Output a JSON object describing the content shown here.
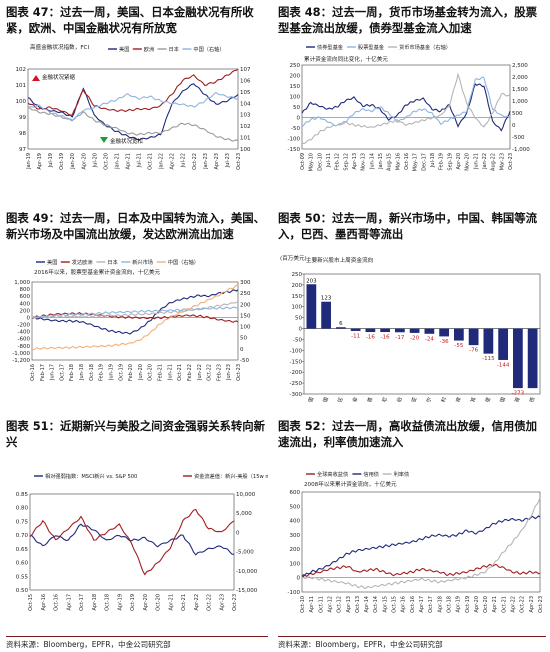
{
  "source_note": "资料来源：Bloomberg，EPFR，中金公司研究部",
  "chart_data": [
    {
      "id": "c47",
      "type": "line",
      "title": "图表 47：过去一周，美国、日本金融状况有所收紧，欧洲、中国金融状况有所放宽",
      "subtitle": "高盛金融状况指数，FCI",
      "left_ylim": [
        97,
        102
      ],
      "left_ticks": [
        "97",
        "98",
        "99",
        "100",
        "101",
        "102"
      ],
      "right_ylim": [
        100,
        107
      ],
      "right_ticks": [
        "100",
        "101",
        "102",
        "103",
        "104",
        "105",
        "106",
        "107"
      ],
      "x_ticks": [
        "Jan-19",
        "Apr-19",
        "Jul-19",
        "Oct-19",
        "Jan-20",
        "Apr-20",
        "Jul-20",
        "Oct-20",
        "Jan-21",
        "Apr-21",
        "Jul-21",
        "Oct-21",
        "Jan-22",
        "Apr-22",
        "Jul-22",
        "Oct-22",
        "Jan-23",
        "Apr-23",
        "Jul-23",
        "Oct-23"
      ],
      "annotations": [
        "金融状况紧缩",
        "金融状况宽松"
      ],
      "series": [
        {
          "name": "美国",
          "color": "#1f2a7a",
          "axis": "left",
          "values": [
            100.2,
            99.6,
            99.4,
            99.3,
            99.0,
            100.8,
            99.1,
            98.5,
            98.1,
            97.8,
            97.6,
            97.7,
            97.9,
            99.8,
            100.6,
            101.1,
            100.4,
            99.8,
            100.0,
            100.4
          ]
        },
        {
          "name": "欧洲",
          "color": "#a01e22",
          "axis": "left",
          "values": [
            99.9,
            99.5,
            99.6,
            99.4,
            99.1,
            100.7,
            99.7,
            99.5,
            99.4,
            99.4,
            99.5,
            99.5,
            99.7,
            100.4,
            101.3,
            101.6,
            101.0,
            101.2,
            101.6,
            102.0
          ]
        },
        {
          "name": "日本",
          "color": "#9a9a9a",
          "axis": "left",
          "values": [
            99.6,
            99.3,
            99.2,
            99.0,
            98.8,
            99.3,
            98.8,
            98.5,
            98.3,
            98.0,
            97.9,
            98.0,
            98.0,
            98.3,
            98.6,
            98.5,
            98.2,
            97.8,
            97.6,
            97.5
          ]
        },
        {
          "name": "中国（右轴）",
          "color": "#8fb4e0",
          "axis": "right",
          "values": [
            103.6,
            103.8,
            103.2,
            102.9,
            102.5,
            103.4,
            103.6,
            104.0,
            104.3,
            104.8,
            104.4,
            104.6,
            104.2,
            104.0,
            103.9,
            103.7,
            104.2,
            104.9,
            104.6,
            104.4
          ]
        }
      ]
    },
    {
      "id": "c48",
      "type": "line",
      "title": "图表 48：过去一周，货币市场基金转为流入，股票型基金流出放缓，债券型基金流入加速",
      "subtitle": "累计资金流向同比变化，十亿美元",
      "left_ylim": [
        -150,
        250
      ],
      "left_ticks": [
        "-150",
        "-100",
        "-50",
        "0",
        "50",
        "100",
        "150",
        "200",
        "250"
      ],
      "right_ylim": [
        -1000,
        2500
      ],
      "right_ticks": [
        "-1,000",
        "-500",
        "0",
        "500",
        "1,000",
        "1,500",
        "2,000",
        "2,500"
      ],
      "x_ticks": [
        "Oct-09",
        "May-10",
        "Dec-10",
        "Jul-11",
        "Feb-12",
        "Sep-12",
        "Apr-13",
        "Nov-13",
        "Jun-14",
        "Jan-15",
        "Aug-15",
        "Mar-16",
        "Oct-16",
        "May-17",
        "Dec-17",
        "Jul-18",
        "Feb-19",
        "Sep-19",
        "Apr-20",
        "Nov-20",
        "Jun-21",
        "Jan-22",
        "Aug-22",
        "Mar-23",
        "Oct-23"
      ],
      "series": [
        {
          "name": "债券型基金",
          "color": "#1f2a7a",
          "axis": "left",
          "values": [
            20,
            70,
            55,
            40,
            50,
            80,
            95,
            55,
            60,
            40,
            -10,
            10,
            60,
            80,
            90,
            40,
            30,
            60,
            -40,
            20,
            160,
            150,
            -20,
            -60,
            30
          ]
        },
        {
          "name": "股票型基金",
          "color": "#8fb4e0",
          "axis": "left",
          "values": [
            -40,
            -10,
            0,
            -20,
            -40,
            -20,
            20,
            40,
            30,
            50,
            20,
            -20,
            0,
            30,
            40,
            20,
            -30,
            -10,
            10,
            30,
            180,
            190,
            40,
            10,
            0
          ]
        },
        {
          "name": "货币市场基金（右轴）",
          "color": "#b5b5b5",
          "axis": "right",
          "values": [
            -800,
            -600,
            -300,
            -100,
            0,
            100,
            0,
            -50,
            -100,
            0,
            100,
            200,
            0,
            100,
            200,
            300,
            400,
            800,
            2100,
            900,
            300,
            -100,
            500,
            1300,
            1200
          ]
        }
      ]
    },
    {
      "id": "c49",
      "type": "line",
      "title": "图表 49：过去一周，日本及中国转为流入，美国、新兴市场及中国流出放缓，发达欧洲流出加速",
      "subtitle": "2016年以来，股票型基金累计资金流向，十亿美元",
      "left_ylim": [
        -1200,
        1000
      ],
      "left_ticks": [
        "-1,200",
        "-1,000",
        "-800",
        "-600",
        "-400",
        "-200",
        "0",
        "200",
        "400",
        "600",
        "800",
        "1,000"
      ],
      "right_ylim": [
        -50,
        300
      ],
      "right_ticks": [
        "-50",
        "0",
        "50",
        "100",
        "150",
        "200",
        "250",
        "300"
      ],
      "x_ticks": [
        "Oct-16",
        "Feb-17",
        "Jun-17",
        "Oct-17",
        "Feb-18",
        "Jun-18",
        "Oct-18",
        "Feb-19",
        "Jun-19",
        "Oct-19",
        "Feb-20",
        "Jun-20",
        "Oct-20",
        "Feb-21",
        "Jun-21",
        "Oct-21",
        "Feb-22",
        "Jun-22",
        "Oct-22",
        "Feb-23",
        "Jun-23",
        "Oct-23"
      ],
      "series": [
        {
          "name": "美国",
          "color": "#1f2a7a",
          "axis": "left",
          "values": [
            0,
            -40,
            -80,
            -100,
            -100,
            -120,
            -200,
            -300,
            -380,
            -420,
            -450,
            -320,
            -100,
            200,
            400,
            500,
            560,
            620,
            600,
            680,
            720,
            780
          ]
        },
        {
          "name": "发达欧洲",
          "color": "#a01e22",
          "axis": "left",
          "values": [
            0,
            40,
            80,
            100,
            110,
            110,
            90,
            60,
            30,
            10,
            0,
            -10,
            -20,
            -10,
            10,
            40,
            60,
            40,
            0,
            -60,
            -100,
            -130
          ]
        },
        {
          "name": "日本",
          "color": "#b5b5b5",
          "axis": "left",
          "values": [
            0,
            10,
            20,
            20,
            30,
            30,
            40,
            40,
            60,
            60,
            80,
            90,
            100,
            130,
            150,
            170,
            200,
            230,
            280,
            330,
            380,
            440
          ]
        },
        {
          "name": "新兴市场",
          "color": "#8fb4e0",
          "axis": "left",
          "values": [
            0,
            20,
            40,
            60,
            80,
            90,
            100,
            120,
            140,
            150,
            160,
            170,
            180,
            190,
            200,
            210,
            230,
            240,
            250,
            260,
            270,
            280
          ]
        },
        {
          "name": "中国（右轴）",
          "color": "#f0b07a",
          "axis": "right",
          "values": [
            0,
            2,
            4,
            5,
            6,
            8,
            10,
            12,
            14,
            20,
            25,
            40,
            70,
            110,
            140,
            160,
            180,
            200,
            220,
            240,
            265,
            285
          ]
        }
      ]
    },
    {
      "id": "c50",
      "type": "bar",
      "title": "图表 50：过去一周，新兴市场中，中国、韩国等流入，巴西、墨西哥等流出",
      "subtitle": "主要新兴股市上周资金流向",
      "ylabel": "(百万美元)",
      "ylim": [
        -300,
        250
      ],
      "y_ticks": [
        "-300",
        "-250",
        "-200",
        "-150",
        "-100",
        "-50",
        "0",
        "50",
        "100",
        "150",
        "200",
        "250"
      ],
      "categories": [
        "中国",
        "韩国",
        "新兴市场地区",
        "南非",
        "阿联酋",
        "印尼",
        "沙特阿拉伯",
        "马来西亚",
        "卡塔尔",
        "智利",
        "菲律宾",
        "土耳其",
        "印度",
        "泰国",
        "墨西哥",
        "巴西"
      ],
      "values": [
        203,
        123,
        6,
        -11,
        -16,
        -16,
        -17,
        -20,
        -24,
        -36,
        -55,
        -76,
        -115,
        -144,
        -273,
        -273
      ],
      "labels": [
        "203",
        "123",
        "6",
        "-11",
        "-16",
        "-16",
        "-17",
        "-20",
        "-24",
        "-36",
        "-55",
        "-76",
        "-115",
        "-144",
        "-273",
        ""
      ]
    },
    {
      "id": "c51",
      "type": "line",
      "title": "图表 51：近期新兴与美股之间资金强弱关系转向新兴",
      "subtitle": "",
      "left_ylim": [
        0.5,
        0.85
      ],
      "left_ticks": [
        "0.50",
        "0.55",
        "0.60",
        "0.65",
        "0.70",
        "0.75",
        "0.80",
        "0.85"
      ],
      "right_ylim": [
        -15000,
        10000
      ],
      "right_ticks": [
        "-15,000",
        "-10,000",
        "-5,000",
        "0",
        "5,000",
        "10,000"
      ],
      "x_ticks": [
        "Oct-15",
        "Apr-16",
        "Oct-16",
        "Apr-17",
        "Oct-17",
        "Apr-18",
        "Oct-18",
        "Apr-19",
        "Oct-19",
        "Apr-20",
        "Oct-20",
        "Apr-21",
        "Oct-21",
        "Apr-22",
        "Oct-22",
        "Apr-23",
        "Oct-23"
      ],
      "series": [
        {
          "name": "相对强弱指数：MSCI新兴 vs. S&P 500",
          "color": "#1f2a7a",
          "axis": "left",
          "values": [
            0.7,
            0.66,
            0.7,
            0.68,
            0.74,
            0.72,
            0.68,
            0.7,
            0.68,
            0.69,
            0.66,
            0.68,
            0.7,
            0.63,
            0.65,
            0.66,
            0.63
          ]
        },
        {
          "name": "资金流差值：新兴-美股（15w mavg，RHS）",
          "color": "#a01e22",
          "axis": "right",
          "values": [
            -1000,
            3000,
            -2000,
            1000,
            4000,
            -2000,
            0,
            2000,
            -3000,
            -11000,
            -8000,
            -4000,
            3000,
            6000,
            1000,
            0,
            3000
          ]
        }
      ]
    },
    {
      "id": "c52",
      "type": "line",
      "title": "图表 52：过去一周，高收益债流出放缓，信用债加速流出，利率债加速流入",
      "subtitle": "2008年以来累计资金流向，十亿美元",
      "left_ylim": [
        -100,
        600
      ],
      "left_ticks": [
        "-100",
        "0",
        "100",
        "200",
        "300",
        "400",
        "500",
        "600"
      ],
      "x_ticks": [
        "Oct-10",
        "Apr-11",
        "Oct-11",
        "Apr-12",
        "Oct-12",
        "Apr-13",
        "Oct-13",
        "Apr-14",
        "Oct-14",
        "Apr-15",
        "Oct-15",
        "Apr-16",
        "Oct-16",
        "Apr-17",
        "Oct-17",
        "Apr-18",
        "Oct-18",
        "Apr-19",
        "Oct-19",
        "Apr-20",
        "Oct-20",
        "Apr-21",
        "Oct-21",
        "Apr-22",
        "Oct-22",
        "Apr-23",
        "Oct-23"
      ],
      "series": [
        {
          "name": "全球高收益债",
          "color": "#a01e22",
          "axis": "left",
          "values": [
            10,
            25,
            40,
            60,
            70,
            80,
            40,
            50,
            60,
            40,
            20,
            30,
            40,
            60,
            50,
            40,
            20,
            30,
            40,
            60,
            80,
            90,
            70,
            40,
            30,
            40,
            30
          ]
        },
        {
          "name": "信用债",
          "color": "#1f2a7a",
          "axis": "left",
          "values": [
            10,
            40,
            60,
            90,
            130,
            170,
            190,
            200,
            210,
            220,
            230,
            240,
            250,
            270,
            290,
            300,
            290,
            300,
            330,
            310,
            340,
            380,
            400,
            410,
            400,
            420,
            425
          ]
        },
        {
          "name": "利率债",
          "color": "#b5b5b5",
          "axis": "left",
          "values": [
            0,
            0,
            -10,
            -20,
            -30,
            -40,
            -60,
            -70,
            -60,
            -50,
            -40,
            -30,
            -20,
            -10,
            -20,
            -30,
            -20,
            -10,
            0,
            20,
            40,
            100,
            180,
            250,
            330,
            430,
            560
          ]
        }
      ]
    }
  ]
}
